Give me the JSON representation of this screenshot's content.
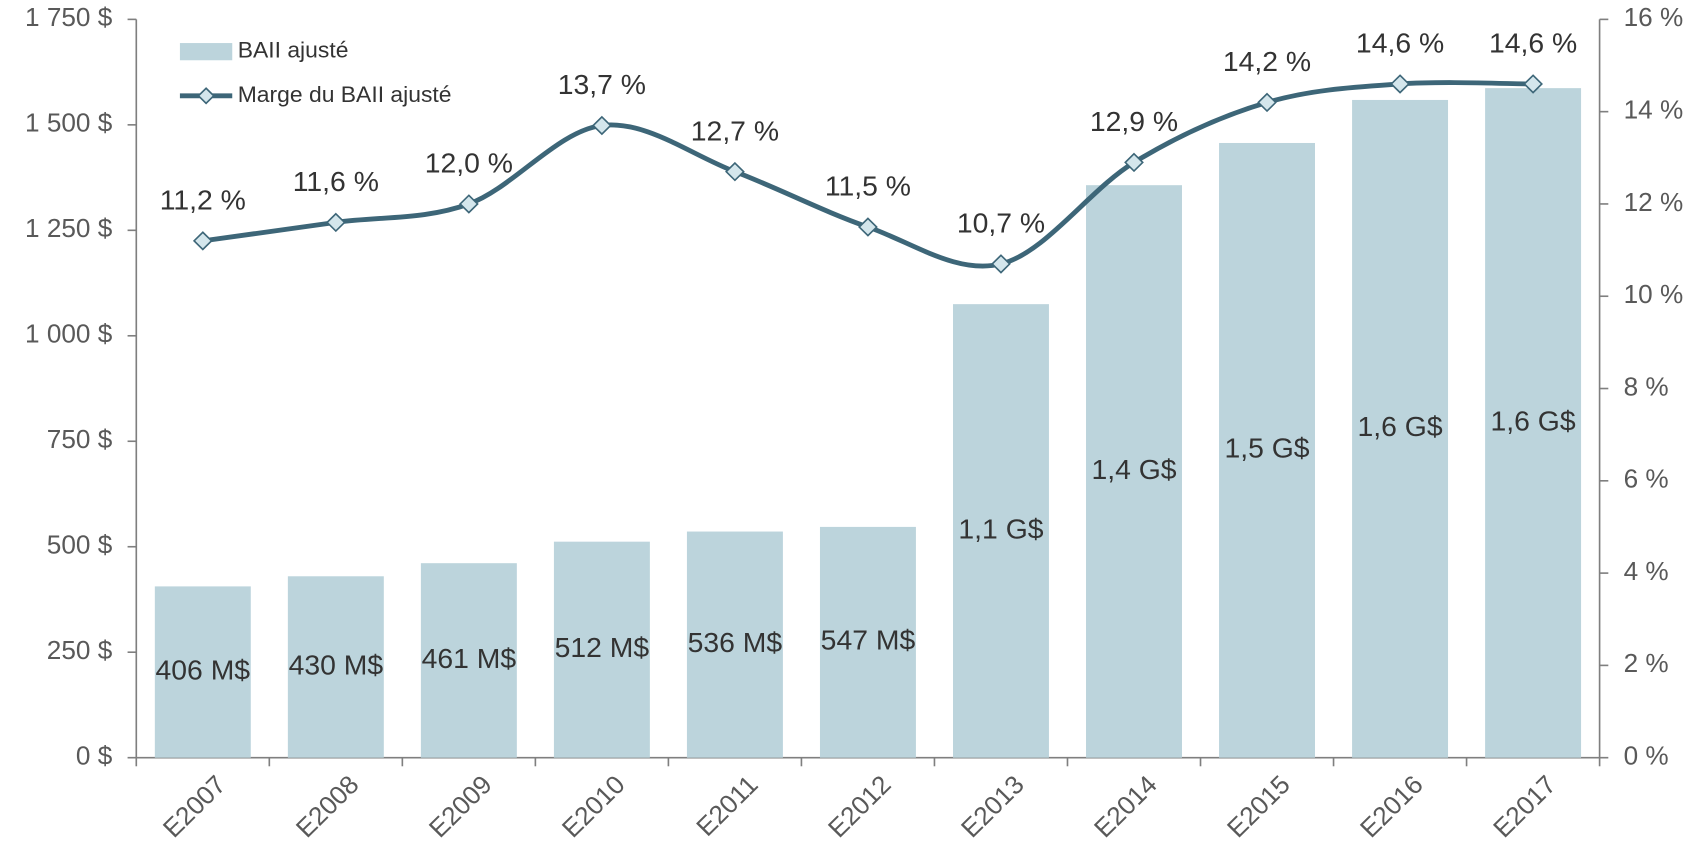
{
  "chart_data": {
    "type": "bar",
    "categories": [
      "E2007",
      "E2008",
      "E2009",
      "E2010",
      "E2011",
      "E2012",
      "E2013",
      "E2014",
      "E2015",
      "E2016",
      "E2017"
    ],
    "series": [
      {
        "name": "BAII ajusté",
        "type": "bar",
        "color": "#bcd4dc",
        "values": [
          406,
          430,
          461,
          512,
          536,
          547,
          1075,
          1357,
          1457,
          1559,
          1587
        ],
        "value_labels": [
          "406 M$",
          "430 M$",
          "461 M$",
          "512 M$",
          "536 M$",
          "547 M$",
          "1,1 G$",
          "1,4 G$",
          "1,5 G$",
          "1,6 G$",
          "1,6 G$"
        ]
      },
      {
        "name": "Marge du BAII ajusté",
        "type": "line",
        "axis": "y2",
        "color": "#3d6678",
        "marker_color": "#d4e6ec",
        "values": [
          11.2,
          11.6,
          12.0,
          13.7,
          12.7,
          11.5,
          10.7,
          12.9,
          14.2,
          14.6,
          14.6
        ],
        "value_labels": [
          "11,2 %",
          "11,6 %",
          "12,0 %",
          "13,7 %",
          "12,7 %",
          "11,5 %",
          "10,7 %",
          "12,9 %",
          "14,2 %",
          "14,6 %",
          "14,6 %"
        ]
      }
    ],
    "ylim": [
      0,
      1750
    ],
    "yticks": [
      {
        "value": 0,
        "label": "0 $"
      },
      {
        "value": 250,
        "label": "250 $"
      },
      {
        "value": 500,
        "label": "500 $"
      },
      {
        "value": 750,
        "label": "750 $"
      },
      {
        "value": 1000,
        "label": "1 000 $"
      },
      {
        "value": 1250,
        "label": "1 250 $"
      },
      {
        "value": 1500,
        "label": "1 500 $"
      },
      {
        "value": 1750,
        "label": "1 750 $"
      }
    ],
    "y2lim": [
      0,
      16
    ],
    "y2ticks": [
      {
        "value": 0,
        "label": "0 %"
      },
      {
        "value": 2,
        "label": "2 %"
      },
      {
        "value": 4,
        "label": "4 %"
      },
      {
        "value": 6,
        "label": "6 %"
      },
      {
        "value": 8,
        "label": "8 %"
      },
      {
        "value": 10,
        "label": "10 %"
      },
      {
        "value": 12,
        "label": "12 %"
      },
      {
        "value": 14,
        "label": "14 %"
      },
      {
        "value": 16,
        "label": "16 %"
      }
    ],
    "legend": "upper left",
    "grid": false
  }
}
